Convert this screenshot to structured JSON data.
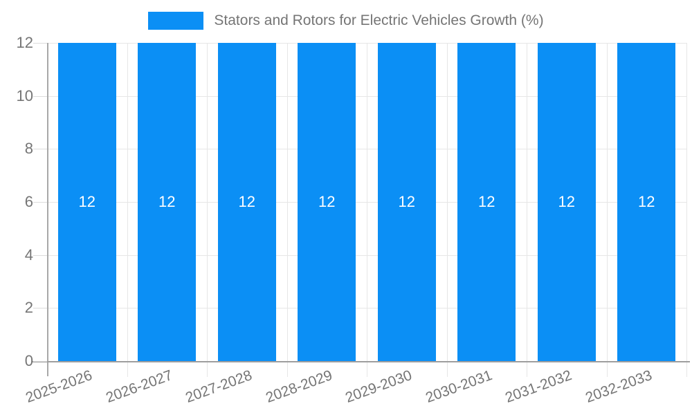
{
  "chart_data": {
    "type": "bar",
    "title": "Stators and Rotors for Electric Vehicles Growth (%)",
    "legend_position": "top-center",
    "categories": [
      "2025-2026",
      "2026-2027",
      "2027-2028",
      "2028-2029",
      "2029-2030",
      "2030-2031",
      "2031-2032",
      "2032-2033"
    ],
    "values": [
      12,
      12,
      12,
      12,
      12,
      12,
      12,
      12
    ],
    "value_labels": [
      "12",
      "12",
      "12",
      "12",
      "12",
      "12",
      "12",
      "12"
    ],
    "xlabel": "",
    "ylabel": "",
    "ylim": [
      0,
      12
    ],
    "yticks": [
      0,
      2,
      4,
      6,
      8,
      10,
      12
    ],
    "grid": true,
    "bar_color": "#0b8ff5",
    "value_label_color": "#ffffff",
    "axis_text_color": "#757575",
    "gridline_color": "#e6e6e6",
    "axis_line_color": "#9e9e9e"
  }
}
